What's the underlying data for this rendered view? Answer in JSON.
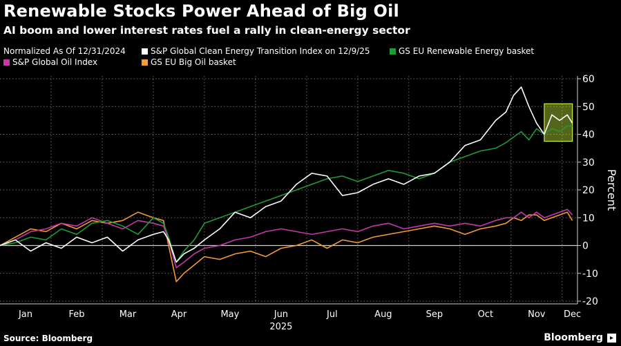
{
  "header": {
    "title": "Renewable Stocks Power Ahead of Big Oil",
    "subtitle": "AI boom and lower interest rates fuel a rally in clean-energy sector"
  },
  "legend": {
    "note": "Normalized As Of 12/31/2024",
    "items": [
      {
        "label": "S&P Global Clean Energy Transition Index on 12/9/25",
        "color": "#ffffff"
      },
      {
        "label": "GS EU Renewable Energy basket",
        "color": "#1f9b3a"
      },
      {
        "label": "S&P Global Oil Index",
        "color": "#c438a8"
      },
      {
        "label": "GS EU Big Oil basket",
        "color": "#f59a35"
      }
    ]
  },
  "footer": {
    "source": "Source: Bloomberg",
    "brand": "Bloomberg",
    "brand_icon": "bloomberg-terminal-icon"
  },
  "chart_data": {
    "type": "line",
    "title": "Renewable Stocks Power Ahead of Big Oil",
    "xlabel": "2025",
    "ylabel": "Percent",
    "x_range": [
      0,
      11.3
    ],
    "ylim": [
      -20,
      60
    ],
    "yticks": [
      -20,
      -10,
      0,
      10,
      20,
      30,
      40,
      50,
      60
    ],
    "x_ticks": [
      {
        "label": "Jan",
        "x": 0.5
      },
      {
        "label": "Feb",
        "x": 1.5
      },
      {
        "label": "Mar",
        "x": 2.5
      },
      {
        "label": "Apr",
        "x": 3.5
      },
      {
        "label": "May",
        "x": 4.5
      },
      {
        "label": "Jun",
        "x": 5.5
      },
      {
        "label": "Jul",
        "x": 6.5
      },
      {
        "label": "Aug",
        "x": 7.5
      },
      {
        "label": "Sep",
        "x": 8.5
      },
      {
        "label": "Oct",
        "x": 9.5
      },
      {
        "label": "Nov",
        "x": 10.5
      },
      {
        "label": "Dec",
        "x": 11.2
      }
    ],
    "year_label": "2025",
    "highlight": {
      "x_start": 10.65,
      "x_end": 11.2,
      "y_low": 37.5,
      "y_high": 51,
      "color": "#c8f03c"
    },
    "series": [
      {
        "name": "S&P Global Clean Energy Transition Index on 12/9/25",
        "color": "#ffffff",
        "x": [
          0,
          0.3,
          0.6,
          0.9,
          1.2,
          1.5,
          1.8,
          2.1,
          2.4,
          2.7,
          3.0,
          3.2,
          3.3,
          3.45,
          3.6,
          3.8,
          4.0,
          4.3,
          4.6,
          4.9,
          5.2,
          5.5,
          5.8,
          6.1,
          6.4,
          6.7,
          7.0,
          7.3,
          7.6,
          7.9,
          8.2,
          8.5,
          8.8,
          9.1,
          9.4,
          9.7,
          9.9,
          10.05,
          10.2,
          10.35,
          10.5,
          10.65,
          10.8,
          10.95,
          11.1,
          11.2
        ],
        "values": [
          0,
          2,
          -2,
          1,
          -1,
          3,
          1,
          3,
          -2,
          2,
          4,
          5,
          2,
          -6,
          -3,
          -1,
          2,
          6,
          12,
          10,
          14,
          16,
          22,
          26,
          25,
          18,
          19,
          22,
          24,
          22,
          25,
          26,
          30,
          36,
          38,
          45,
          48,
          54,
          57,
          50,
          44,
          40,
          47,
          45,
          47,
          44
        ]
      },
      {
        "name": "GS EU Renewable Energy basket",
        "color": "#1f9b3a",
        "x": [
          0,
          0.3,
          0.6,
          0.9,
          1.2,
          1.5,
          1.8,
          2.1,
          2.4,
          2.7,
          3.0,
          3.2,
          3.3,
          3.45,
          3.6,
          3.8,
          4.0,
          4.3,
          4.6,
          4.9,
          5.2,
          5.5,
          5.8,
          6.1,
          6.4,
          6.7,
          7.0,
          7.3,
          7.6,
          7.9,
          8.2,
          8.5,
          8.8,
          9.1,
          9.4,
          9.7,
          9.9,
          10.05,
          10.2,
          10.35,
          10.5,
          10.65,
          10.8,
          10.95,
          11.1,
          11.2
        ],
        "values": [
          0,
          1,
          3,
          2,
          6,
          4,
          8,
          9,
          7,
          4,
          10,
          8,
          3,
          -6,
          -2,
          2,
          8,
          10,
          12,
          14,
          16,
          18,
          20,
          22,
          24,
          25,
          23,
          25,
          27,
          26,
          24,
          26,
          30,
          32,
          34,
          35,
          37,
          39,
          41,
          38,
          42,
          40,
          42,
          41,
          43,
          43
        ]
      },
      {
        "name": "S&P Global Oil Index",
        "color": "#c438a8",
        "x": [
          0,
          0.3,
          0.6,
          0.9,
          1.2,
          1.5,
          1.8,
          2.1,
          2.4,
          2.7,
          3.0,
          3.2,
          3.3,
          3.45,
          3.6,
          3.8,
          4.0,
          4.3,
          4.6,
          4.9,
          5.2,
          5.5,
          5.8,
          6.1,
          6.4,
          6.7,
          7.0,
          7.3,
          7.6,
          7.9,
          8.2,
          8.5,
          8.8,
          9.1,
          9.4,
          9.7,
          9.9,
          10.05,
          10.2,
          10.35,
          10.5,
          10.65,
          10.8,
          10.95,
          11.1,
          11.2
        ],
        "values": [
          0,
          2,
          5,
          6,
          8,
          7,
          10,
          8,
          6,
          9,
          8,
          7,
          2,
          -8,
          -6,
          -3,
          -1,
          0,
          2,
          3,
          5,
          6,
          5,
          4,
          5,
          6,
          5,
          7,
          8,
          6,
          7,
          8,
          7,
          8,
          7,
          9,
          10,
          10,
          12,
          10,
          12,
          10,
          11,
          12,
          13,
          11
        ]
      },
      {
        "name": "GS EU Big Oil basket",
        "color": "#f59a35",
        "x": [
          0,
          0.3,
          0.6,
          0.9,
          1.2,
          1.5,
          1.8,
          2.1,
          2.4,
          2.7,
          3.0,
          3.2,
          3.3,
          3.45,
          3.6,
          3.8,
          4.0,
          4.3,
          4.6,
          4.9,
          5.2,
          5.5,
          5.8,
          6.1,
          6.4,
          6.7,
          7.0,
          7.3,
          7.6,
          7.9,
          8.2,
          8.5,
          8.8,
          9.1,
          9.4,
          9.7,
          9.9,
          10.05,
          10.2,
          10.35,
          10.5,
          10.65,
          10.8,
          10.95,
          11.1,
          11.2
        ],
        "values": [
          0,
          3,
          6,
          5,
          8,
          6,
          9,
          8,
          9,
          12,
          10,
          9,
          0,
          -13,
          -10,
          -7,
          -4,
          -5,
          -3,
          -2,
          -4,
          -1,
          0,
          2,
          -1,
          2,
          1,
          3,
          4,
          5,
          6,
          7,
          6,
          4,
          6,
          7,
          8,
          10,
          9,
          11,
          11,
          9,
          10,
          11,
          12,
          9
        ]
      }
    ]
  }
}
